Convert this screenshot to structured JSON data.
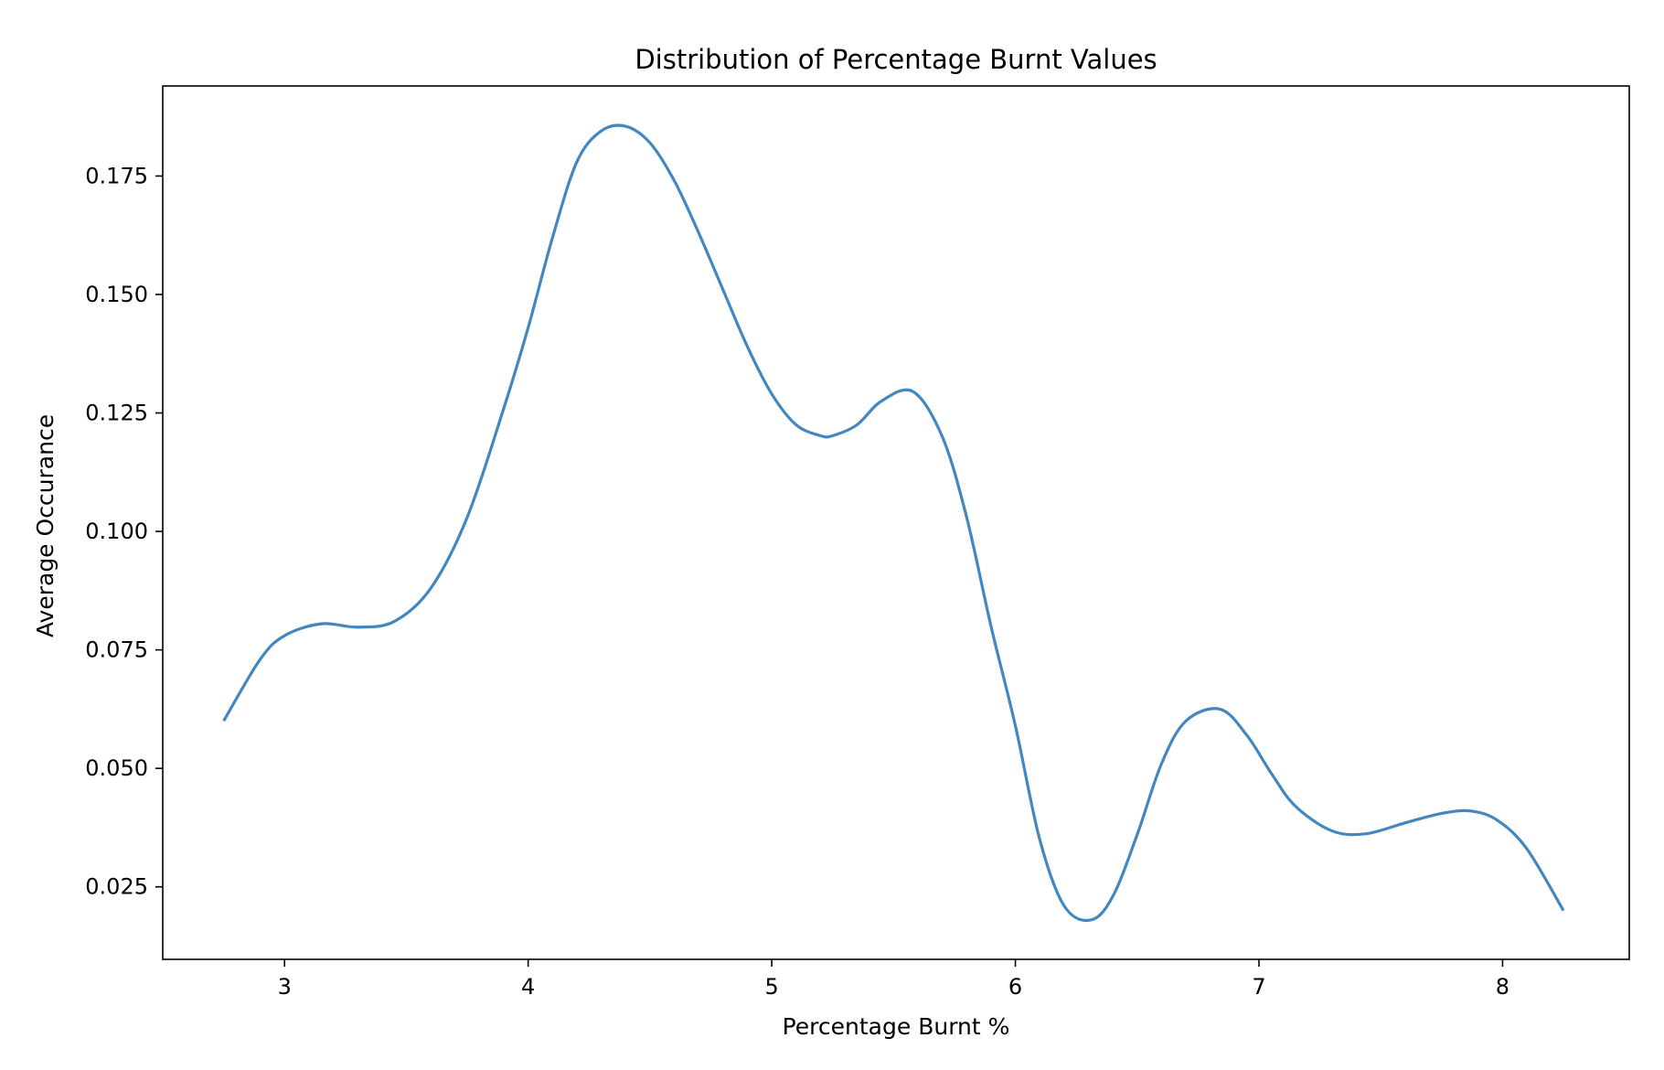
{
  "chart_data": {
    "type": "line",
    "title": "Distribution of Percentage Burnt Values",
    "xlabel": "Percentage Burnt %",
    "ylabel": "Average Occurance",
    "xlim": [
      2.5,
      8.52
    ],
    "ylim": [
      0.0097,
      0.194
    ],
    "x_ticks": [
      3,
      4,
      5,
      6,
      7,
      8
    ],
    "x_tick_labels": [
      "3",
      "4",
      "5",
      "6",
      "7",
      "8"
    ],
    "y_ticks": [
      0.025,
      0.05,
      0.075,
      0.1,
      0.125,
      0.15,
      0.175
    ],
    "y_tick_labels": [
      "0.025",
      "0.050",
      "0.075",
      "0.100",
      "0.125",
      "0.150",
      "0.175"
    ],
    "grid": false,
    "legend": "none",
    "series": [
      {
        "color": "#4287bf",
        "x": [
          2.75,
          2.9,
          3.0,
          3.15,
          3.3,
          3.45,
          3.6,
          3.75,
          3.9,
          4.0,
          4.1,
          4.2,
          4.3,
          4.4,
          4.5,
          4.6,
          4.7,
          4.8,
          4.9,
          5.0,
          5.1,
          5.2,
          5.25,
          5.35,
          5.45,
          5.58,
          5.7,
          5.8,
          5.9,
          6.0,
          6.1,
          6.2,
          6.31,
          6.4,
          6.5,
          6.6,
          6.7,
          6.84,
          6.95,
          7.05,
          7.15,
          7.3,
          7.44,
          7.6,
          7.75,
          7.87,
          7.98,
          8.1,
          8.25
        ],
        "y": [
          0.06,
          0.073,
          0.078,
          0.0805,
          0.0798,
          0.081,
          0.088,
          0.103,
          0.126,
          0.143,
          0.162,
          0.178,
          0.1845,
          0.1855,
          0.182,
          0.174,
          0.163,
          0.151,
          0.139,
          0.129,
          0.1225,
          0.1202,
          0.1202,
          0.1225,
          0.1275,
          0.1295,
          0.12,
          0.103,
          0.08,
          0.059,
          0.035,
          0.021,
          0.018,
          0.023,
          0.036,
          0.051,
          0.06,
          0.0625,
          0.057,
          0.049,
          0.042,
          0.0368,
          0.0362,
          0.0385,
          0.0405,
          0.041,
          0.039,
          0.033,
          0.02
        ]
      }
    ]
  }
}
